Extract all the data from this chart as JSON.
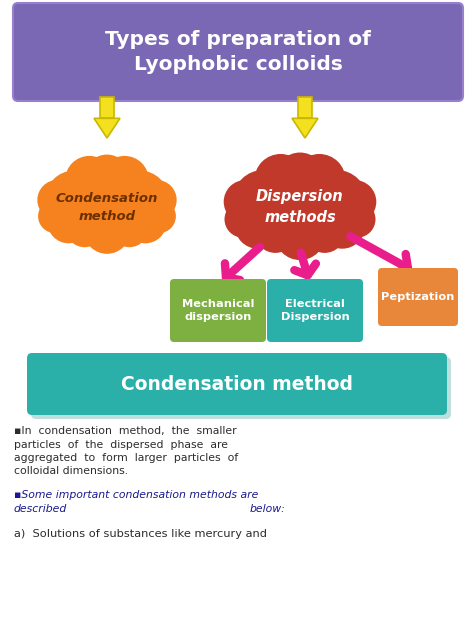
{
  "bg_color": "#ffffff",
  "title_box_color": "#7B68B5",
  "title_text": "Types of preparation of\nLyophobic colloids",
  "title_text_color": "#ffffff",
  "condensation_cloud_color": "#F5821F",
  "condensation_text": "Condensation\nmethod",
  "condensation_text_color": "#6B3000",
  "dispersion_cloud_color": "#C0392B",
  "dispersion_text": "Dispersion\nmethods",
  "dispersion_text_color": "#ffffff",
  "arrow_yellow_color": "#F5E020",
  "arrow_yellow_edge": "#C8B800",
  "arrow_magenta_color": "#E91E8C",
  "mech_box_color": "#7DB040",
  "mech_text": "Mechanical\ndispersion",
  "mech_text_color": "#ffffff",
  "elec_box_color": "#2AAFA9",
  "elec_text": "Electrical\nDispersion",
  "elec_text_color": "#ffffff",
  "pept_box_color": "#E8873A",
  "pept_text": "Peptization",
  "pept_text_color": "#ffffff",
  "banner_color": "#2AAFA9",
  "banner_shadow_color": "#b0d8d8",
  "banner_text": "Condensation method",
  "banner_text_color": "#ffffff",
  "body_text1_lines": [
    "▪In  condensation  method,  the  smaller",
    "particles  of  the  dispersed  phase  are",
    "aggregated  to  form  larger  particles  of",
    "colloidal dimensions."
  ],
  "body_text2_line1": "▪Some important condensation methods are",
  "body_text2_line2": "described",
  "body_text2_line3": "below:",
  "body_text3": "a)  Solutions of substances like mercury and",
  "body_text_color": "#2c2c2c",
  "body_italic_color": "#1a1a8e"
}
